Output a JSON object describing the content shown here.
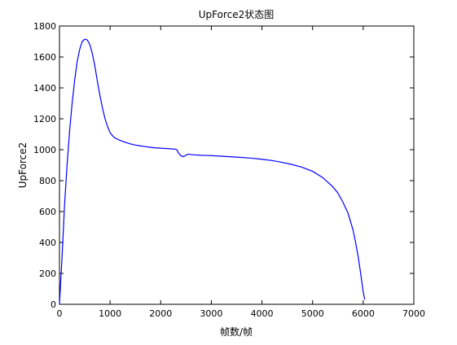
{
  "chart_data": {
    "type": "line",
    "title": "UpForce2状态图",
    "xlabel": "帧数/帧",
    "ylabel": "UpForce2",
    "xlim": [
      0,
      7000
    ],
    "ylim": [
      0,
      1800
    ],
    "xticks": [
      0,
      1000,
      2000,
      3000,
      4000,
      5000,
      6000,
      7000
    ],
    "yticks": [
      0,
      200,
      400,
      600,
      800,
      1000,
      1200,
      1400,
      1600,
      1800
    ],
    "grid": false,
    "legend": "none",
    "series": [
      {
        "color": "#0000ff",
        "x": [
          0,
          50,
          100,
          150,
          200,
          250,
          300,
          350,
          400,
          450,
          500,
          550,
          600,
          650,
          700,
          750,
          800,
          850,
          900,
          950,
          1000,
          1050,
          1100,
          1200,
          1300,
          1400,
          1500,
          1600,
          1700,
          1800,
          1900,
          2000,
          2100,
          2200,
          2300,
          2320,
          2350,
          2400,
          2450,
          2500,
          2550,
          2600,
          2700,
          2800,
          3000,
          3200,
          3400,
          3600,
          3800,
          4000,
          4200,
          4400,
          4600,
          4800,
          5000,
          5200,
          5400,
          5500,
          5600,
          5700,
          5800,
          5850,
          5900,
          5950,
          6000,
          6030
        ],
        "y": [
          0,
          300,
          640,
          900,
          1120,
          1300,
          1450,
          1570,
          1650,
          1700,
          1715,
          1710,
          1680,
          1620,
          1540,
          1440,
          1350,
          1270,
          1200,
          1150,
          1110,
          1090,
          1075,
          1060,
          1048,
          1038,
          1030,
          1025,
          1020,
          1015,
          1012,
          1010,
          1008,
          1006,
          1003,
          998,
          980,
          960,
          955,
          965,
          972,
          968,
          966,
          964,
          962,
          958,
          954,
          950,
          945,
          938,
          930,
          918,
          904,
          886,
          860,
          820,
          760,
          720,
          660,
          590,
          480,
          400,
          310,
          200,
          80,
          30
        ]
      }
    ]
  }
}
